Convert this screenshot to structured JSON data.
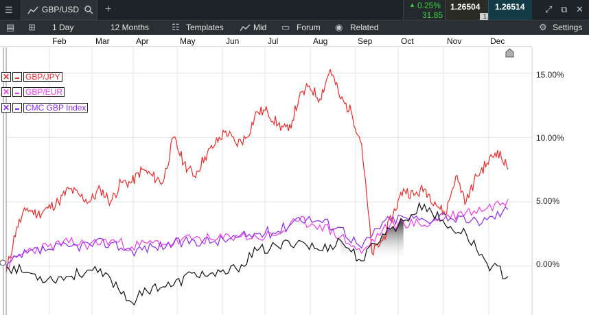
{
  "header": {
    "menu_icon": "menu-icon",
    "symbol": "GBP/USD",
    "search_icon": "search-icon",
    "add_tab": "+",
    "change_pct": "0.25%",
    "change_pts": "31.85",
    "sell_price": "1.26504",
    "buy_price": "1.26514",
    "spread": "1.0",
    "up_color": "#3fd13f"
  },
  "toolbar": {
    "interval": "1 Day",
    "range": "12 Months",
    "templates": "Templates",
    "price_type": "Mid",
    "forum": "Forum",
    "related": "Related",
    "settings": "Settings"
  },
  "legend": [
    {
      "label": "GBP/JPY",
      "color": "#e52b2b"
    },
    {
      "label": "GBP/EUR",
      "color": "#e93ce8"
    },
    {
      "label": "CMC GBP Index",
      "color": "#8a2be2"
    }
  ],
  "chart_data": {
    "type": "line",
    "x_axis_labels": [
      "Feb",
      "Mar",
      "Apr",
      "May",
      "Jun",
      "Jul",
      "Aug",
      "Sep",
      "Oct",
      "Nov",
      "Dec"
    ],
    "y_ticks": [
      "15.00%",
      "10.00%",
      "5.00%",
      "0.00%"
    ],
    "ylim": [
      -3.8,
      17
    ],
    "grid": true,
    "legend_position": "top-left",
    "series": [
      {
        "name": "GBP/JPY",
        "color": "#e52b2b",
        "x": [
          0,
          1,
          2,
          3,
          4,
          5,
          6,
          7,
          8,
          9,
          10,
          11,
          12,
          13,
          14,
          15,
          16,
          17,
          18,
          19,
          20,
          21,
          22,
          23,
          24,
          25,
          26,
          27,
          28,
          29,
          30,
          31,
          32,
          33,
          34,
          35,
          36,
          37,
          38,
          39,
          40,
          41,
          42,
          43,
          44,
          45,
          46,
          47,
          48
        ],
        "values": [
          -0.5,
          3,
          4.5,
          4,
          4.5,
          5,
          6,
          5.5,
          5,
          6,
          5,
          6.5,
          6.5,
          7.5,
          7,
          6.5,
          10,
          8,
          7,
          8.5,
          9.5,
          10.5,
          9.5,
          10,
          12,
          12,
          11,
          10.5,
          13,
          14,
          13,
          15.3,
          13,
          12,
          9.5,
          1,
          2,
          4,
          6,
          5.5,
          6,
          5,
          4,
          7,
          5,
          7,
          8,
          9,
          7.5
        ]
      },
      {
        "name": "GBP/EUR",
        "color": "#e93ce8",
        "x": [
          0,
          2,
          4,
          6,
          8,
          10,
          12,
          14,
          16,
          18,
          20,
          22,
          24,
          26,
          28,
          30,
          32,
          34,
          36,
          38,
          40,
          42,
          44,
          46,
          48
        ],
        "values": [
          0,
          1.2,
          1.5,
          1.8,
          1.7,
          2,
          1.5,
          1.8,
          1.8,
          2.2,
          2,
          2.4,
          2.2,
          2.5,
          3.5,
          3.2,
          2.3,
          1,
          2.8,
          3.4,
          3.2,
          3.8,
          4.2,
          4.5,
          5.2
        ]
      },
      {
        "name": "CMC GBP Index",
        "color": "#8a2be2",
        "x": [
          0,
          2,
          4,
          6,
          8,
          10,
          12,
          14,
          16,
          18,
          20,
          22,
          24,
          26,
          28,
          30,
          32,
          34,
          36,
          38,
          40,
          42,
          44,
          46,
          48
        ],
        "values": [
          0,
          1,
          1.3,
          1.5,
          1.7,
          1.8,
          1.2,
          1.5,
          1.7,
          2,
          1.9,
          2.2,
          2.5,
          2.7,
          3.8,
          3.5,
          3,
          1.4,
          3.4,
          3.8,
          3.6,
          4,
          3.4,
          3.6,
          4.4
        ]
      },
      {
        "name": "GBP/USD",
        "color": "#111111",
        "x": [
          0,
          2,
          4,
          6,
          8,
          10,
          12,
          14,
          16,
          18,
          20,
          22,
          24,
          26,
          28,
          30,
          32,
          34,
          36,
          38,
          40,
          42,
          44,
          46,
          48
        ],
        "values": [
          0,
          -0.5,
          -1,
          -0.8,
          -0.3,
          -1,
          -2.8,
          -1.6,
          -1.5,
          -0.5,
          -0.8,
          -0.2,
          1.2,
          1.5,
          2,
          1.2,
          2,
          0.4,
          2.5,
          3.5,
          4.8,
          3.2,
          2.5,
          0.2,
          -0.8
        ]
      }
    ]
  }
}
